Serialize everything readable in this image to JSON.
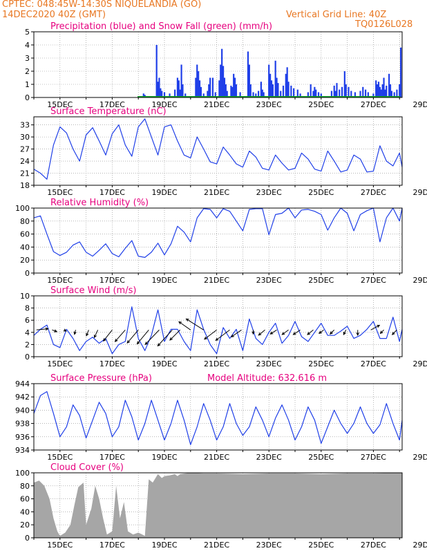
{
  "header": {
    "line1": "CPTEC:   048:45W-14:30S   NIQUELANDIA (GO)",
    "line2": "14DEC2020 40Z (GMT)",
    "grid_note": "Vertical Grid Line: 40Z",
    "code": "TQ0126L028",
    "title_color": "#e87722",
    "panel_title_color": "#e6007e"
  },
  "chart_data": [
    {
      "type": "bar",
      "title": "Precipitation (blue) and Snow Fall (green) (mm/h)",
      "ylim": [
        0,
        5
      ],
      "yticks": [
        "0",
        "1",
        "2",
        "3",
        "4",
        "5"
      ],
      "xticks": [
        "15DEC",
        "17DEC",
        "19DEC",
        "21DEC",
        "23DEC",
        "25DEC",
        "27DEC",
        "29DEC"
      ],
      "colors": {
        "precip": "#1f3fe8",
        "snow": "#12a32a"
      },
      "series": [
        {
          "values": [
            [
              4.2,
              0.3
            ],
            [
              4.25,
              0.2
            ],
            [
              4.7,
              4.0
            ],
            [
              4.75,
              1.2
            ],
            [
              4.8,
              1.5
            ],
            [
              4.85,
              0.7
            ],
            [
              4.9,
              0.5
            ],
            [
              5.0,
              0.4
            ],
            [
              5.2,
              0.3
            ],
            [
              5.4,
              0.6
            ],
            [
              5.5,
              1.5
            ],
            [
              5.55,
              1.3
            ],
            [
              5.6,
              0.6
            ],
            [
              5.65,
              2.5
            ],
            [
              5.7,
              1.0
            ],
            [
              5.8,
              0.3
            ],
            [
              6.2,
              1.5
            ],
            [
              6.25,
              2.5
            ],
            [
              6.3,
              2.0
            ],
            [
              6.35,
              1.3
            ],
            [
              6.4,
              0.8
            ],
            [
              6.5,
              0.3
            ],
            [
              6.65,
              0.5
            ],
            [
              6.7,
              1.0
            ],
            [
              6.75,
              1.5
            ],
            [
              6.85,
              1.5
            ],
            [
              6.95,
              0.4
            ],
            [
              7.1,
              1.3
            ],
            [
              7.15,
              2.5
            ],
            [
              7.2,
              3.7
            ],
            [
              7.25,
              2.4
            ],
            [
              7.3,
              1.5
            ],
            [
              7.35,
              1.0
            ],
            [
              7.4,
              0.5
            ],
            [
              7.55,
              0.9
            ],
            [
              7.6,
              0.8
            ],
            [
              7.65,
              1.8
            ],
            [
              7.7,
              1.5
            ],
            [
              7.75,
              1.0
            ],
            [
              7.9,
              0.4
            ],
            [
              8.2,
              3.5
            ],
            [
              8.25,
              2.5
            ],
            [
              8.3,
              1.0
            ],
            [
              8.4,
              0.4
            ],
            [
              8.5,
              0.3
            ],
            [
              8.6,
              0.5
            ],
            [
              8.7,
              1.2
            ],
            [
              8.75,
              0.6
            ],
            [
              8.8,
              0.4
            ],
            [
              9.0,
              2.5
            ],
            [
              9.05,
              1.8
            ],
            [
              9.1,
              1.3
            ],
            [
              9.15,
              1.0
            ],
            [
              9.25,
              2.8
            ],
            [
              9.3,
              1.5
            ],
            [
              9.35,
              1.1
            ],
            [
              9.45,
              0.5
            ],
            [
              9.55,
              0.9
            ],
            [
              9.65,
              1.8
            ],
            [
              9.7,
              2.3
            ],
            [
              9.75,
              1.2
            ],
            [
              9.85,
              0.9
            ],
            [
              9.95,
              0.7
            ],
            [
              10.1,
              0.6
            ],
            [
              10.2,
              0.3
            ],
            [
              10.5,
              0.4
            ],
            [
              10.6,
              1.0
            ],
            [
              10.7,
              0.5
            ],
            [
              10.75,
              0.8
            ],
            [
              10.8,
              0.6
            ],
            [
              10.9,
              0.4
            ],
            [
              11.0,
              0.3
            ],
            [
              11.4,
              0.5
            ],
            [
              11.5,
              0.9
            ],
            [
              11.55,
              0.5
            ],
            [
              11.6,
              1.1
            ],
            [
              11.7,
              0.6
            ],
            [
              11.8,
              0.8
            ],
            [
              11.9,
              2.0
            ],
            [
              11.95,
              1.0
            ],
            [
              12.05,
              0.8
            ],
            [
              12.15,
              0.5
            ],
            [
              12.3,
              0.4
            ],
            [
              12.5,
              0.5
            ],
            [
              12.6,
              0.8
            ],
            [
              12.7,
              0.6
            ],
            [
              12.8,
              0.4
            ],
            [
              13.0,
              0.3
            ],
            [
              13.1,
              1.3
            ],
            [
              13.15,
              1.0
            ],
            [
              13.2,
              1.2
            ],
            [
              13.25,
              0.8
            ],
            [
              13.3,
              0.6
            ],
            [
              13.35,
              1.0
            ],
            [
              13.4,
              1.5
            ],
            [
              13.45,
              0.6
            ],
            [
              13.5,
              0.9
            ],
            [
              13.6,
              1.8
            ],
            [
              13.65,
              1.0
            ],
            [
              13.7,
              0.5
            ],
            [
              13.8,
              0.4
            ],
            [
              13.9,
              0.6
            ],
            [
              14.0,
              1.0
            ],
            [
              14.05,
              3.8
            ]
          ]
        },
        {
          "values": [
            [
              4.5,
              0.05
            ],
            [
              5.5,
              0.05
            ],
            [
              6.5,
              0.05
            ],
            [
              7.5,
              0.05
            ],
            [
              8.5,
              0.05
            ],
            [
              9.5,
              0.05
            ],
            [
              10.5,
              0.05
            ],
            [
              11.5,
              0.05
            ],
            [
              12.5,
              0.05
            ],
            [
              13.5,
              0.05
            ]
          ]
        }
      ]
    },
    {
      "type": "line",
      "title": "Surface Temperature (nC)",
      "ylim": [
        18,
        35
      ],
      "yticks": [
        "18",
        "21",
        "24",
        "27",
        "30",
        "33"
      ],
      "xticks": [
        "15DEC",
        "17DEC",
        "19DEC",
        "21DEC",
        "23DEC",
        "25DEC",
        "27DEC",
        "29DEC"
      ],
      "color": "#1f3fe8",
      "x": [
        0,
        0.25,
        0.5,
        0.75,
        1,
        1.25,
        1.5,
        1.75,
        2,
        2.25,
        2.5,
        2.75,
        3,
        3.25,
        3.5,
        3.75,
        4,
        4.25,
        4.5,
        4.75,
        5,
        5.25,
        5.5,
        5.75,
        6,
        6.25,
        6.5,
        6.75,
        7,
        7.25,
        7.5,
        7.75,
        8,
        8.25,
        8.5,
        8.75,
        9,
        9.25,
        9.5,
        9.75,
        10,
        10.25,
        10.5,
        10.75,
        11,
        11.25,
        11.5,
        11.75,
        12,
        12.25,
        12.5,
        12.75,
        13,
        13.25,
        13.5,
        13.75,
        14,
        14.1
      ],
      "y": [
        22,
        21,
        19.5,
        28,
        32.5,
        31,
        27,
        24,
        30.5,
        32.3,
        29,
        25.5,
        30.8,
        33,
        28,
        25.2,
        32.5,
        34.5,
        30,
        25.5,
        32.5,
        33,
        29,
        25.5,
        24.8,
        30,
        27,
        23.8,
        23.3,
        27.5,
        25.5,
        23.3,
        22.5,
        26.5,
        25,
        22.2,
        21.8,
        25.5,
        23.5,
        21.8,
        22.2,
        26,
        24.5,
        22,
        21.5,
        26.5,
        24,
        21.3,
        21.8,
        25.5,
        24.5,
        21.3,
        21.5,
        27.8,
        24,
        22.8,
        26,
        22.5
      ]
    },
    {
      "type": "line",
      "title": "Relative Humidity (%)",
      "ylim": [
        0,
        100
      ],
      "yticks": [
        "0",
        "20",
        "40",
        "60",
        "80",
        "100"
      ],
      "xticks": [
        "15DEC",
        "17DEC",
        "19DEC",
        "21DEC",
        "23DEC",
        "25DEC",
        "27DEC",
        "29DEC"
      ],
      "color": "#1f3fe8",
      "x": [
        0,
        0.25,
        0.5,
        0.75,
        1,
        1.25,
        1.5,
        1.75,
        2,
        2.25,
        2.5,
        2.75,
        3,
        3.25,
        3.5,
        3.75,
        4,
        4.25,
        4.5,
        4.75,
        5,
        5.25,
        5.5,
        5.75,
        6,
        6.25,
        6.5,
        6.75,
        7,
        7.25,
        7.5,
        7.75,
        8,
        8.25,
        8.5,
        8.75,
        9,
        9.25,
        9.5,
        9.75,
        10,
        10.25,
        10.5,
        10.75,
        11,
        11.25,
        11.5,
        11.75,
        12,
        12.25,
        12.5,
        12.75,
        13,
        13.25,
        13.5,
        13.75,
        14,
        14.1
      ],
      "y": [
        85,
        88,
        60,
        33,
        27,
        32,
        43,
        48,
        32,
        26,
        35,
        45,
        30,
        25,
        38,
        50,
        26,
        24,
        32,
        46,
        28,
        45,
        72,
        63,
        48,
        85,
        99,
        98,
        85,
        99,
        95,
        80,
        65,
        98,
        99,
        99,
        59,
        90,
        92,
        100,
        85,
        97,
        98,
        95,
        90,
        66,
        85,
        100,
        92,
        65,
        90,
        96,
        100,
        48,
        85,
        100,
        80,
        100
      ]
    },
    {
      "type": "line",
      "title": "Surface Wind (m/s)",
      "ylim": [
        0,
        10
      ],
      "yticks": [
        "0",
        "2",
        "4",
        "6",
        "8",
        "10"
      ],
      "xticks": [
        "15DEC",
        "17DEC",
        "19DEC",
        "21DEC",
        "23DEC",
        "25DEC",
        "27DEC",
        "29DEC"
      ],
      "color": "#1f3fe8",
      "x": [
        0,
        0.25,
        0.5,
        0.75,
        1,
        1.25,
        1.5,
        1.75,
        2,
        2.25,
        2.5,
        2.75,
        3,
        3.25,
        3.5,
        3.75,
        4,
        4.25,
        4.5,
        4.75,
        5,
        5.25,
        5.5,
        5.75,
        6,
        6.25,
        6.5,
        6.75,
        7,
        7.25,
        7.5,
        7.75,
        8,
        8.25,
        8.5,
        8.75,
        9,
        9.25,
        9.5,
        9.75,
        10,
        10.25,
        10.5,
        10.75,
        11,
        11.25,
        11.5,
        11.75,
        12,
        12.25,
        12.5,
        12.75,
        13,
        13.25,
        13.5,
        13.75,
        14,
        14.1
      ],
      "y": [
        3.5,
        4.5,
        5.2,
        2,
        1.5,
        4.5,
        3,
        1,
        2.5,
        3.2,
        2.2,
        3,
        0.5,
        2,
        2.5,
        8.2,
        3,
        1,
        3.5,
        7.7,
        2.5,
        4.5,
        4.5,
        2.5,
        1,
        7.7,
        4.5,
        2,
        0.5,
        4.8,
        3,
        4.5,
        1,
        6.2,
        3,
        2,
        4,
        5.5,
        2.2,
        3.5,
        5.8,
        3.3,
        2.5,
        4,
        5.5,
        3.5,
        3.5,
        4.2,
        5,
        3,
        3.5,
        4.5,
        5.8,
        3,
        3,
        6.5,
        2.5,
        4.5
      ],
      "arrows": {
        "x": [
          0.1,
          0.7,
          1.15,
          1.6,
          2.1,
          2.45,
          3.0,
          3.5,
          4.0,
          4.4,
          4.8,
          5.3,
          5.6,
          6.0,
          6.5,
          7.0,
          7.5,
          7.95,
          8.4,
          8.85,
          9.3,
          9.75,
          10.2,
          10.7,
          11.1,
          11.5,
          11.95,
          12.4,
          12.9,
          13.4,
          13.9
        ],
        "u": [
          4,
          1.6,
          0.8,
          -0.4,
          -0.8,
          -1.2,
          -3,
          -3.5,
          -3.8,
          -4,
          -4.8,
          -5,
          -3.5,
          -4,
          -6,
          -4.2,
          -4.8,
          -3.5,
          0,
          -2.2,
          -2.2,
          -2.2,
          -2.4,
          -2,
          -1.6,
          -1.4,
          -0.8,
          0,
          3,
          -1.2,
          -1.6
        ],
        "v": [
          0.4,
          -0.6,
          -0.4,
          -1.5,
          -2,
          -2.6,
          -3.8,
          -4,
          -4.5,
          -4.8,
          -5,
          -5.5,
          -3.5,
          2.8,
          3.8,
          -3.2,
          -3.6,
          -2.4,
          -1.4,
          -1.8,
          -1.4,
          -1.6,
          -1.6,
          -1.6,
          -1.2,
          -1.4,
          -1.6,
          -1.8,
          1.6,
          -1.2,
          -1.6
        ]
      }
    },
    {
      "type": "line",
      "title": "Surface Pressure (hPa)",
      "annotation": "Model Altitude: 632.616  m",
      "ylim": [
        934,
        944
      ],
      "yticks": [
        "934",
        "936",
        "938",
        "940",
        "942",
        "944"
      ],
      "xticks": [
        "15DEC",
        "17DEC",
        "19DEC",
        "21DEC",
        "23DEC",
        "25DEC",
        "27DEC",
        "29DEC"
      ],
      "color": "#1f3fe8",
      "x": [
        0,
        0.25,
        0.5,
        0.75,
        1,
        1.25,
        1.5,
        1.75,
        2,
        2.25,
        2.5,
        2.75,
        3,
        3.25,
        3.5,
        3.75,
        4,
        4.25,
        4.5,
        4.75,
        5,
        5.25,
        5.5,
        5.75,
        6,
        6.25,
        6.5,
        6.75,
        7,
        7.25,
        7.5,
        7.75,
        8,
        8.25,
        8.5,
        8.75,
        9,
        9.25,
        9.5,
        9.75,
        10,
        10.25,
        10.5,
        10.75,
        11,
        11.25,
        11.5,
        11.75,
        12,
        12.25,
        12.5,
        12.75,
        13,
        13.25,
        13.5,
        13.75,
        14,
        14.1
      ],
      "y": [
        939.5,
        942.2,
        942.8,
        939.5,
        936,
        937.5,
        940.8,
        939.2,
        935.8,
        938.5,
        941.2,
        939.5,
        936,
        937.5,
        941.5,
        939,
        935.5,
        938,
        941.5,
        938.5,
        935.5,
        938,
        941.5,
        938.5,
        934.8,
        937.5,
        941,
        938.5,
        935.5,
        937.5,
        941,
        938,
        936.2,
        937.5,
        940.5,
        938.5,
        936,
        938.8,
        940.8,
        938.5,
        935.5,
        937.5,
        940.5,
        938.5,
        935,
        937.5,
        940,
        938,
        936.5,
        938,
        940.5,
        938,
        936.5,
        937.8,
        941,
        938,
        935.5,
        938.5
      ]
    },
    {
      "type": "area",
      "title": "Cloud Cover (%)",
      "ylim": [
        0,
        100
      ],
      "yticks": [
        "0",
        "20",
        "40",
        "60",
        "80",
        "100"
      ],
      "xticks": [
        "15DEC",
        "17DEC",
        "19DEC",
        "21DEC",
        "23DEC",
        "25DEC",
        "27DEC",
        "29DEC"
      ],
      "color": "#a6a6a6",
      "x": [
        0,
        0.2,
        0.4,
        0.6,
        0.75,
        0.9,
        1.0,
        1.2,
        1.4,
        1.55,
        1.7,
        1.9,
        2.0,
        2.2,
        2.35,
        2.5,
        2.65,
        2.8,
        3.0,
        3.15,
        3.3,
        3.45,
        3.6,
        3.8,
        4.0,
        4.15,
        4.25,
        4.4,
        4.55,
        4.75,
        4.9,
        5.0,
        5.2,
        5.4,
        5.5,
        5.6,
        5.8,
        6.0,
        6.5,
        7.0,
        8.0,
        9.0,
        10.0,
        11.0,
        12.0,
        13.0,
        14.0,
        14.1
      ],
      "y": [
        85,
        88,
        80,
        60,
        30,
        10,
        3,
        8,
        20,
        50,
        78,
        85,
        20,
        45,
        80,
        60,
        30,
        5,
        10,
        80,
        30,
        55,
        10,
        5,
        8,
        5,
        3,
        90,
        85,
        98,
        92,
        95,
        96,
        98,
        95,
        98,
        99,
        100,
        99,
        99,
        98,
        99,
        99,
        98,
        99,
        99,
        100,
        100
      ]
    }
  ]
}
